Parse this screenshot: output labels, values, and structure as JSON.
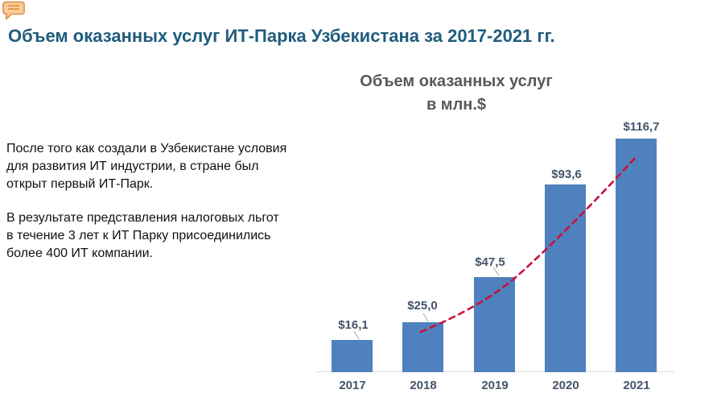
{
  "page": {
    "title": "Объем оказанных услуг ИТ-Парка Узбекистана за 2017-2021 гг."
  },
  "icons": {
    "comment": "comment-bubble-icon"
  },
  "description": {
    "para1": "После того как создали в Узбекистане условия\nдля развития ИТ индустрии, в стране был\nоткрыт первый ИТ-Парк.",
    "para2": "В результате представления налоговых льгот\nв течение 3 лет к ИТ Парку присоединились\nболее 400 ИТ компании."
  },
  "chart_data": {
    "type": "bar",
    "title_line1": "Объем оказанных услуг",
    "title_line2": "в млн.$",
    "categories": [
      "2017",
      "2018",
      "2019",
      "2020",
      "2021"
    ],
    "values": [
      16.1,
      25.0,
      47.5,
      93.6,
      116.7
    ],
    "value_labels": [
      "$16,1",
      "$25,0",
      "$47,5",
      "$93,6",
      "$116,7"
    ],
    "ylabel": "",
    "xlabel": "",
    "ylim": [
      0,
      130
    ],
    "gridlines": false,
    "legend": "none",
    "series_color": "#4E81BD",
    "trendline": {
      "style": "dashed",
      "color": "#C9113C"
    },
    "colors": {
      "page_title": "#1F5C7D",
      "chart_title": "#595959",
      "labels": "#44546A",
      "axis": "#D9D9D9"
    }
  }
}
